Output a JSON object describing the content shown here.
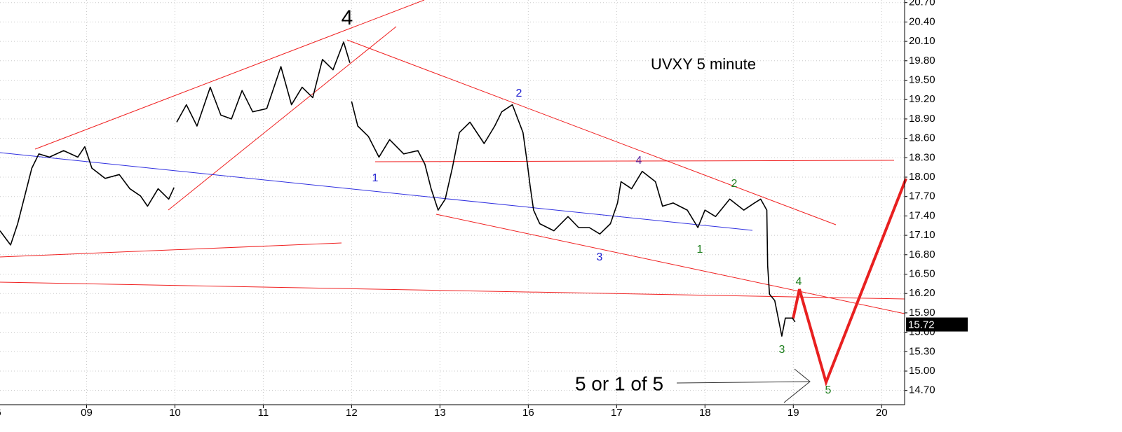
{
  "chart_data": {
    "type": "line",
    "title": "UVXY 5 minute",
    "x": [
      0.02,
      0.14,
      0.22,
      0.3,
      0.38,
      0.46,
      0.58,
      0.74,
      0.9,
      0.98,
      1.06,
      1.21,
      1.37,
      1.49,
      1.61,
      1.69,
      1.81,
      1.93,
      1.99,
      2.0,
      2.02,
      2.13,
      2.25,
      2.4,
      2.52,
      2.64,
      2.76,
      2.88,
      3.04,
      3.2,
      3.32,
      3.44,
      3.56,
      3.67,
      3.79,
      3.91,
      3.98,
      3.99,
      4.0,
      4.07,
      4.19,
      4.31,
      4.43,
      4.59,
      4.75,
      4.83,
      4.9,
      4.98,
      5.06,
      5.14,
      5.22,
      5.34,
      5.5,
      5.62,
      5.7,
      5.82,
      5.94,
      5.99,
      6.02,
      6.06,
      6.13,
      6.29,
      6.45,
      6.57,
      6.69,
      6.81,
      6.93,
      7.01,
      7.05,
      7.17,
      7.29,
      7.44,
      7.52,
      7.64,
      7.8,
      7.92,
      8.0,
      8.12,
      8.28,
      8.44,
      8.56,
      8.63,
      8.7,
      8.71,
      8.73,
      8.79,
      8.87,
      8.91,
      8.99,
      9.02
    ],
    "values": [
      17.17,
      16.95,
      17.28,
      17.71,
      18.14,
      18.36,
      18.31,
      18.41,
      18.31,
      18.47,
      18.14,
      17.98,
      18.04,
      17.82,
      17.71,
      17.55,
      17.82,
      17.66,
      17.84,
      null,
      18.85,
      19.12,
      18.79,
      19.39,
      18.96,
      18.9,
      19.34,
      19.01,
      19.06,
      19.71,
      19.12,
      19.39,
      19.23,
      19.82,
      19.66,
      20.09,
      19.77,
      null,
      19.17,
      18.79,
      18.63,
      18.31,
      18.58,
      18.36,
      18.41,
      18.2,
      17.82,
      17.49,
      17.66,
      18.14,
      18.69,
      18.85,
      18.52,
      18.79,
      19.01,
      19.12,
      18.69,
      18.2,
      17.87,
      17.49,
      17.28,
      17.17,
      17.39,
      17.22,
      17.22,
      17.12,
      17.28,
      17.6,
      17.93,
      17.82,
      18.09,
      17.93,
      17.55,
      17.6,
      17.49,
      17.22,
      17.49,
      17.39,
      17.66,
      17.49,
      17.6,
      17.66,
      17.49,
      16.63,
      16.19,
      16.09,
      15.54,
      15.82,
      15.82,
      15.76
    ],
    "color": "#000000",
    "xlim": [
      0.02,
      10.26
    ],
    "ylim": [
      14.48,
      20.74
    ],
    "xticks": [
      {
        "value": 0,
        "label": "6"
      },
      {
        "value": 1,
        "label": "09"
      },
      {
        "value": 2,
        "label": "10"
      },
      {
        "value": 3,
        "label": "11"
      },
      {
        "value": 4,
        "label": "12"
      },
      {
        "value": 5,
        "label": "13"
      },
      {
        "value": 6,
        "label": "16"
      },
      {
        "value": 7,
        "label": "17"
      },
      {
        "value": 8,
        "label": "18"
      },
      {
        "value": 9,
        "label": "19"
      },
      {
        "value": 10,
        "label": "20"
      }
    ],
    "yticks": [
      {
        "value": 20.7,
        "label": "20.70"
      },
      {
        "value": 20.4,
        "label": "20.40"
      },
      {
        "value": 20.1,
        "label": "20.10"
      },
      {
        "value": 19.8,
        "label": "19.80"
      },
      {
        "value": 19.5,
        "label": "19.50"
      },
      {
        "value": 19.2,
        "label": "19.20"
      },
      {
        "value": 18.9,
        "label": "18.90"
      },
      {
        "value": 18.6,
        "label": "18.60"
      },
      {
        "value": 18.3,
        "label": "18.30"
      },
      {
        "value": 18,
        "label": "18.00"
      },
      {
        "value": 17.7,
        "label": "17.70"
      },
      {
        "value": 17.4,
        "label": "17.40"
      },
      {
        "value": 17.1,
        "label": "17.10"
      },
      {
        "value": 16.8,
        "label": "16.80"
      },
      {
        "value": 16.5,
        "label": "16.50"
      },
      {
        "value": 16.2,
        "label": "16.20"
      },
      {
        "value": 15.9,
        "label": "15.90"
      },
      {
        "value": 15.6,
        "label": "15.60"
      },
      {
        "value": 15.3,
        "label": "15.30"
      },
      {
        "value": 15,
        "label": "15.00"
      },
      {
        "value": 14.7,
        "label": "14.70"
      }
    ],
    "grid": true,
    "last_price": 15.72,
    "annotations": [
      "4",
      "1",
      "2",
      "3",
      "4",
      "2",
      "1",
      "3",
      "4",
      "5",
      "5 or 1 of 5"
    ]
  }
}
